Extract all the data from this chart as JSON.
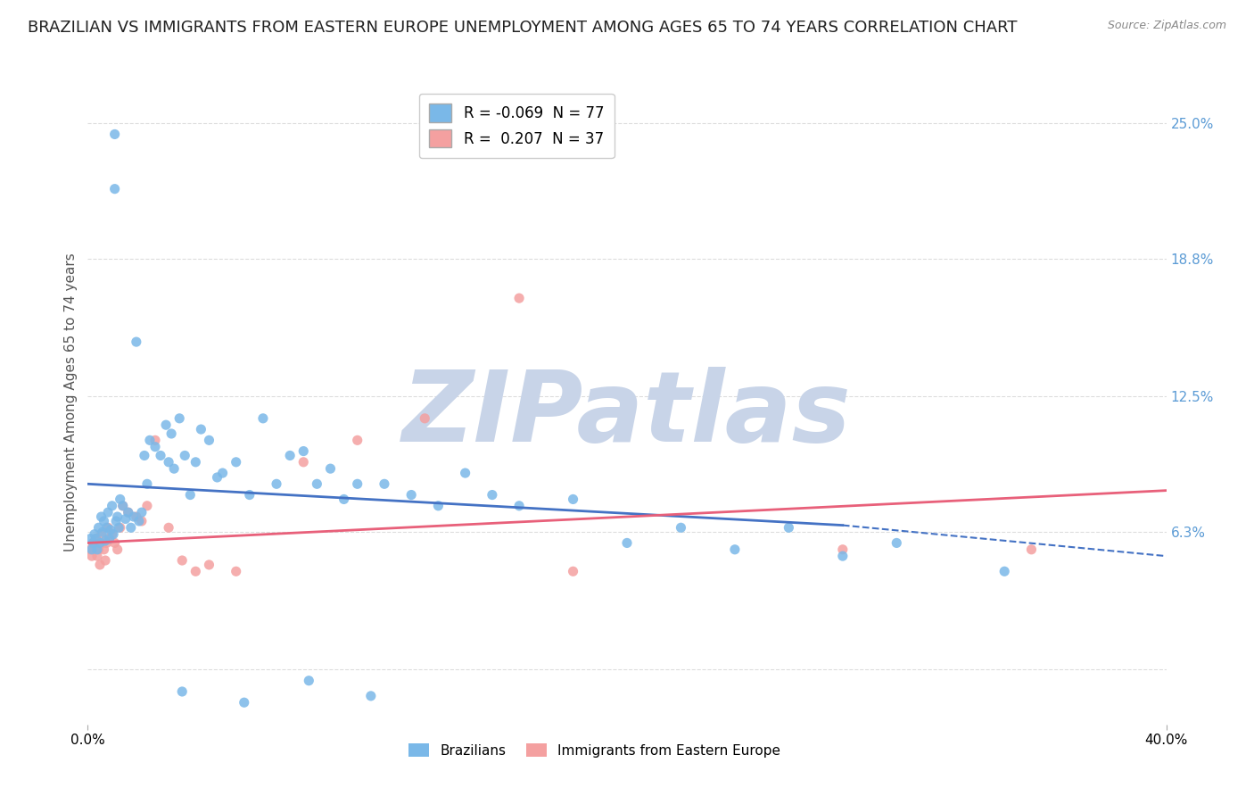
{
  "title": "BRAZILIAN VS IMMIGRANTS FROM EASTERN EUROPE UNEMPLOYMENT AMONG AGES 65 TO 74 YEARS CORRELATION CHART",
  "source": "Source: ZipAtlas.com",
  "ylabel": "Unemployment Among Ages 65 to 74 years",
  "xlim": [
    0.0,
    40.0
  ],
  "ylim": [
    -2.5,
    27.0
  ],
  "ytick_positions": [
    6.3,
    12.5,
    18.8,
    25.0
  ],
  "ytick_labels": [
    "6.3%",
    "12.5%",
    "18.8%",
    "25.0%"
  ],
  "blue_x": [
    0.1,
    0.15,
    0.2,
    0.25,
    0.3,
    0.35,
    0.4,
    0.45,
    0.5,
    0.55,
    0.6,
    0.65,
    0.7,
    0.75,
    0.8,
    0.85,
    0.9,
    0.95,
    1.0,
    1.05,
    1.1,
    1.15,
    1.2,
    1.3,
    1.4,
    1.5,
    1.6,
    1.7,
    1.8,
    1.9,
    2.0,
    2.1,
    2.2,
    2.3,
    2.5,
    2.7,
    2.9,
    3.0,
    3.1,
    3.2,
    3.4,
    3.6,
    3.8,
    4.0,
    4.2,
    4.5,
    4.8,
    5.0,
    5.5,
    6.0,
    6.5,
    7.0,
    7.5,
    8.0,
    8.5,
    9.0,
    9.5,
    10.0,
    11.0,
    12.0,
    13.0,
    14.0,
    15.0,
    16.0,
    18.0,
    20.0,
    22.0,
    24.0,
    26.0,
    28.0,
    30.0,
    34.0,
    1.0,
    3.5,
    5.8,
    8.2,
    10.5
  ],
  "blue_y": [
    6.0,
    5.5,
    5.8,
    6.2,
    6.0,
    5.5,
    6.5,
    5.8,
    7.0,
    6.3,
    6.8,
    5.9,
    6.5,
    7.2,
    6.0,
    6.4,
    7.5,
    6.2,
    24.5,
    6.8,
    7.0,
    6.5,
    7.8,
    7.5,
    6.9,
    7.2,
    6.5,
    7.0,
    15.0,
    6.8,
    7.2,
    9.8,
    8.5,
    10.5,
    10.2,
    9.8,
    11.2,
    9.5,
    10.8,
    9.2,
    11.5,
    9.8,
    8.0,
    9.5,
    11.0,
    10.5,
    8.8,
    9.0,
    9.5,
    8.0,
    11.5,
    8.5,
    9.8,
    10.0,
    8.5,
    9.2,
    7.8,
    8.5,
    8.5,
    8.0,
    7.5,
    9.0,
    8.0,
    7.5,
    7.8,
    5.8,
    6.5,
    5.5,
    6.5,
    5.2,
    5.8,
    4.5,
    22.0,
    -1.0,
    -1.5,
    -0.5,
    -1.2
  ],
  "pink_x": [
    0.1,
    0.15,
    0.2,
    0.25,
    0.3,
    0.35,
    0.4,
    0.45,
    0.5,
    0.55,
    0.6,
    0.65,
    0.7,
    0.75,
    0.8,
    0.9,
    1.0,
    1.1,
    1.2,
    1.3,
    1.5,
    1.8,
    2.0,
    2.2,
    2.5,
    3.0,
    3.5,
    4.0,
    4.5,
    5.5,
    8.0,
    10.0,
    12.5,
    16.0,
    18.0,
    28.0,
    35.0
  ],
  "pink_y": [
    5.5,
    5.2,
    5.8,
    5.5,
    6.0,
    5.2,
    5.5,
    4.8,
    6.2,
    5.8,
    5.5,
    5.0,
    5.8,
    6.5,
    6.0,
    6.2,
    5.8,
    5.5,
    6.5,
    7.5,
    7.2,
    7.0,
    6.8,
    7.5,
    10.5,
    6.5,
    5.0,
    4.5,
    4.8,
    4.5,
    9.5,
    10.5,
    11.5,
    17.0,
    4.5,
    5.5,
    5.5
  ],
  "blue_trend_start_y": 8.5,
  "blue_trend_end_y": 5.8,
  "blue_trend_dashed_end_y": 5.2,
  "pink_trend_start_y": 5.8,
  "pink_trend_end_y": 8.2,
  "solid_end_x": 40.0,
  "dashed_start_x": 30.0,
  "dashed_end_x": 40.0,
  "watermark_text": "ZIPatlas",
  "watermark_color": "#c8d4e8",
  "watermark_fontsize": 80,
  "legend_R_blue": "-0.069",
  "legend_N_blue": "77",
  "legend_R_pink": "0.207",
  "legend_N_pink": "37",
  "background_color": "#ffffff",
  "grid_color": "#dddddd",
  "title_fontsize": 13,
  "axis_label_fontsize": 11,
  "tick_fontsize": 11,
  "right_axis_color": "#5b9bd5",
  "blue_color": "#7ab8e8",
  "pink_color": "#f4a0a0",
  "blue_trend_color": "#4472c4",
  "pink_trend_color": "#e8607a"
}
